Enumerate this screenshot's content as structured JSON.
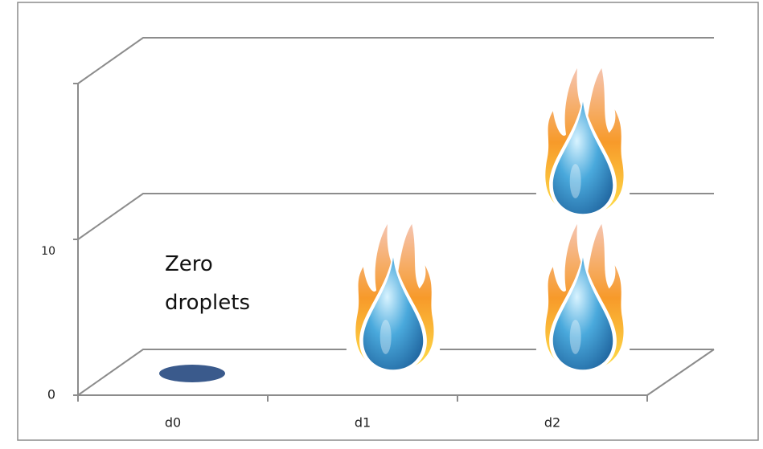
{
  "chart_data": {
    "type": "pictograph",
    "categories": [
      "d0",
      "d1",
      "d2"
    ],
    "values": [
      0,
      10,
      20
    ],
    "ylim": [
      0,
      20
    ],
    "yticks": [
      0,
      10
    ],
    "grid": true,
    "color": "#3a5a8c",
    "annotation": "Zero droplets"
  }
}
